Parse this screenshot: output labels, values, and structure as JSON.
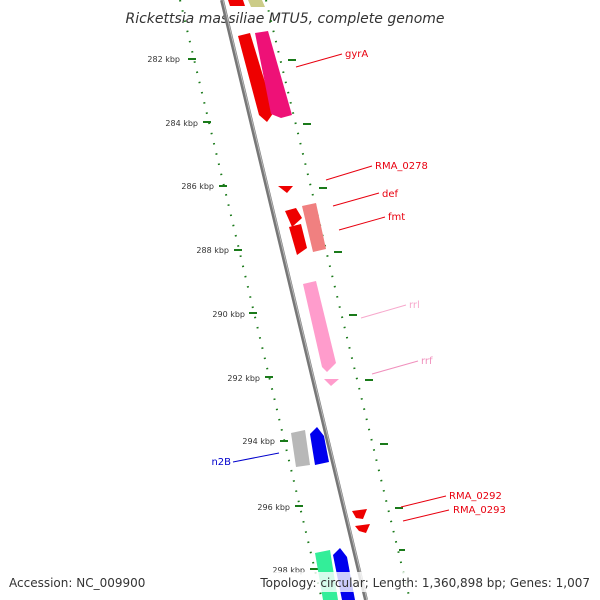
{
  "header": {
    "title": "Rickettsia massiliae MTU5, complete genome"
  },
  "footer": {
    "accession": "Accession: NC_009900",
    "summary": "Topology: circular; Length: 1,360,898 bp; Genes: 1,007"
  },
  "scale": {
    "unit": "kbp",
    "ticks": [
      {
        "kbp": 282,
        "label": "282 kbp"
      },
      {
        "kbp": 284,
        "label": "284 kbp"
      },
      {
        "kbp": 286,
        "label": "286 kbp"
      },
      {
        "kbp": 288,
        "label": "288 kbp"
      },
      {
        "kbp": 290,
        "label": "290 kbp"
      },
      {
        "kbp": 292,
        "label": "292 kbp"
      },
      {
        "kbp": 294,
        "label": "294 kbp"
      },
      {
        "kbp": 296,
        "label": "296 kbp"
      },
      {
        "kbp": 298,
        "label": "298 kbp"
      }
    ]
  },
  "genes": [
    {
      "label": "gyrA",
      "color": "#e8000f"
    },
    {
      "label": "RMA_0278",
      "color": "#e8000f"
    },
    {
      "label": "def",
      "color": "#e8000f"
    },
    {
      "label": "fmt",
      "color": "#e8000f"
    },
    {
      "label": "rrl",
      "color": "#f7a8cc"
    },
    {
      "label": "rrf",
      "color": "#f090bd"
    },
    {
      "label": "n2B",
      "color": "#0000cc"
    },
    {
      "label": "RMA_0292",
      "color": "#e8000f"
    },
    {
      "label": "RMA_0293",
      "color": "#e8000f"
    }
  ],
  "colors": {
    "backbone": "#8a8a8a",
    "tick_dots": "#1a7a1a",
    "red": "#ee0000",
    "magenta": "#ee1177",
    "salmon": "#f08080",
    "pink": "#ff9ccc",
    "grey": "#b8b8b8",
    "blue": "#0000ee",
    "teal": "#33ee99",
    "olive": "#cccc88"
  }
}
